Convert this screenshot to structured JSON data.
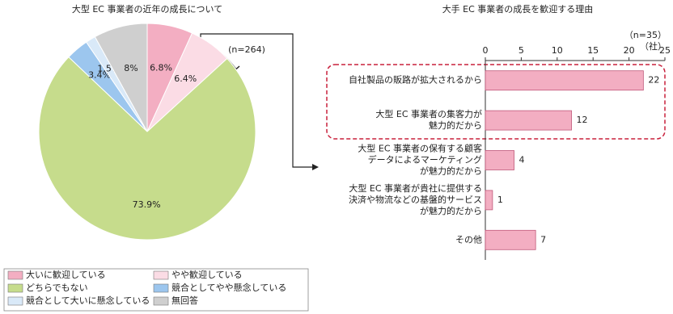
{
  "chart_data": [
    {
      "type": "pie",
      "title": "大型 EC 事業者の近年の成長について",
      "note": "(n=264)",
      "categories": [
        "大いに歓迎している",
        "やや歓迎している",
        "どちらでもない",
        "競合としてやや懸念している",
        "競合として大いに懸念している",
        "無回答"
      ],
      "values": [
        6.8,
        6.4,
        73.9,
        3.4,
        1.5,
        8
      ],
      "value_labels": [
        "6.8%",
        "6.4%",
        "73.9%",
        "3.4%",
        "1.5%",
        "8%"
      ],
      "colors": [
        "#f3aec2",
        "#fbdce5",
        "#c6dc8c",
        "#9cc6ee",
        "#d9e9f8",
        "#cfcfcf"
      ]
    },
    {
      "type": "barh",
      "title": "大手 EC 事業者の成長を歓迎する理由",
      "note": "（n=35）",
      "unit": "（社）",
      "categories": [
        [
          "自社製品の販路が拡大されるから"
        ],
        [
          "大型 EC 事業者の集客力が",
          "魅力的だから"
        ],
        [
          "大型 EC 事業者の保有する顧客",
          "データによるマーケティング",
          "が魅力的だから"
        ],
        [
          "大型 EC 事業者が貴社に提供する",
          "決済や物流などの基盤的サービス",
          "が魅力的だから"
        ],
        [
          "その他"
        ]
      ],
      "values": [
        22,
        12,
        4,
        1,
        7
      ],
      "color": "#f3aec2",
      "xlim": [
        0,
        25
      ],
      "xticks": [
        0,
        5,
        10,
        15,
        20,
        25
      ],
      "grid": false
    }
  ]
}
